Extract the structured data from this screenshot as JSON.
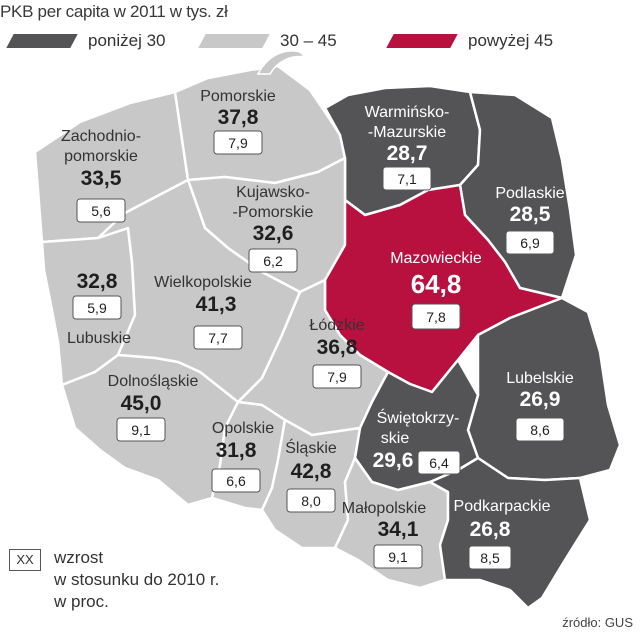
{
  "title": "PKB per capita w 2011 w tys. zł",
  "legend": {
    "below30": {
      "label": "poniżej 30",
      "color": "#545456"
    },
    "between": {
      "label": "30 – 45",
      "color": "#c8c8c8"
    },
    "above45": {
      "label": "powyżej 45",
      "color": "#b8113f"
    }
  },
  "regions": {
    "pomorskie": {
      "name": "Pomorskie",
      "value": "37,8",
      "growth": "7,9"
    },
    "zachodniopomorskie": {
      "name1": "Zachodnio-",
      "name2": "pomorskie",
      "value": "33,5",
      "growth": "5,6"
    },
    "warminsko": {
      "name1": "Warmińsko-",
      "name2": "-Mazurskie",
      "value": "28,7",
      "growth": "7,1"
    },
    "podlaskie": {
      "name": "Podlaskie",
      "value": "28,5",
      "growth": "6,9"
    },
    "kujawsko": {
      "name1": "Kujawsko-",
      "name2": "-Pomorskie",
      "value": "32,6",
      "growth": "6,2"
    },
    "mazowieckie": {
      "name": "Mazowieckie",
      "value": "64,8",
      "growth": "7,8"
    },
    "lubuskie": {
      "name": "Lubuskie",
      "value": "32,8",
      "growth": "5,9"
    },
    "wielkopolskie": {
      "name": "Wielkopolskie",
      "value": "41,3",
      "growth": "7,7"
    },
    "lodzkie": {
      "name": "Łódzkie",
      "value": "36,8",
      "growth": "7,9"
    },
    "dolnoslaskie": {
      "name": "Dolnośląskie",
      "value": "45,0",
      "growth": "9,1"
    },
    "opolskie": {
      "name": "Opolskie",
      "value": "31,8",
      "growth": "6,6"
    },
    "slaskie": {
      "name": "Śląskie",
      "value": "42,8",
      "growth": "8,0"
    },
    "swietokrzyskie": {
      "name1": "Świętokrzy-",
      "name2": "skie",
      "value": "29,6",
      "growth": "6,4"
    },
    "lubelskie": {
      "name": "Lubelskie",
      "value": "26,9",
      "growth": "8,6"
    },
    "malopolskie": {
      "name": "Małopolskie",
      "value": "34,1",
      "growth": "9,1"
    },
    "podkarpackie": {
      "name": "Podkarpackie",
      "value": "26,8",
      "growth": "8,5"
    }
  },
  "key": {
    "box": "XX",
    "text": "wzrost\nw stosunku do 2010 r.\nw proc."
  },
  "source": "źródło: GUS"
}
